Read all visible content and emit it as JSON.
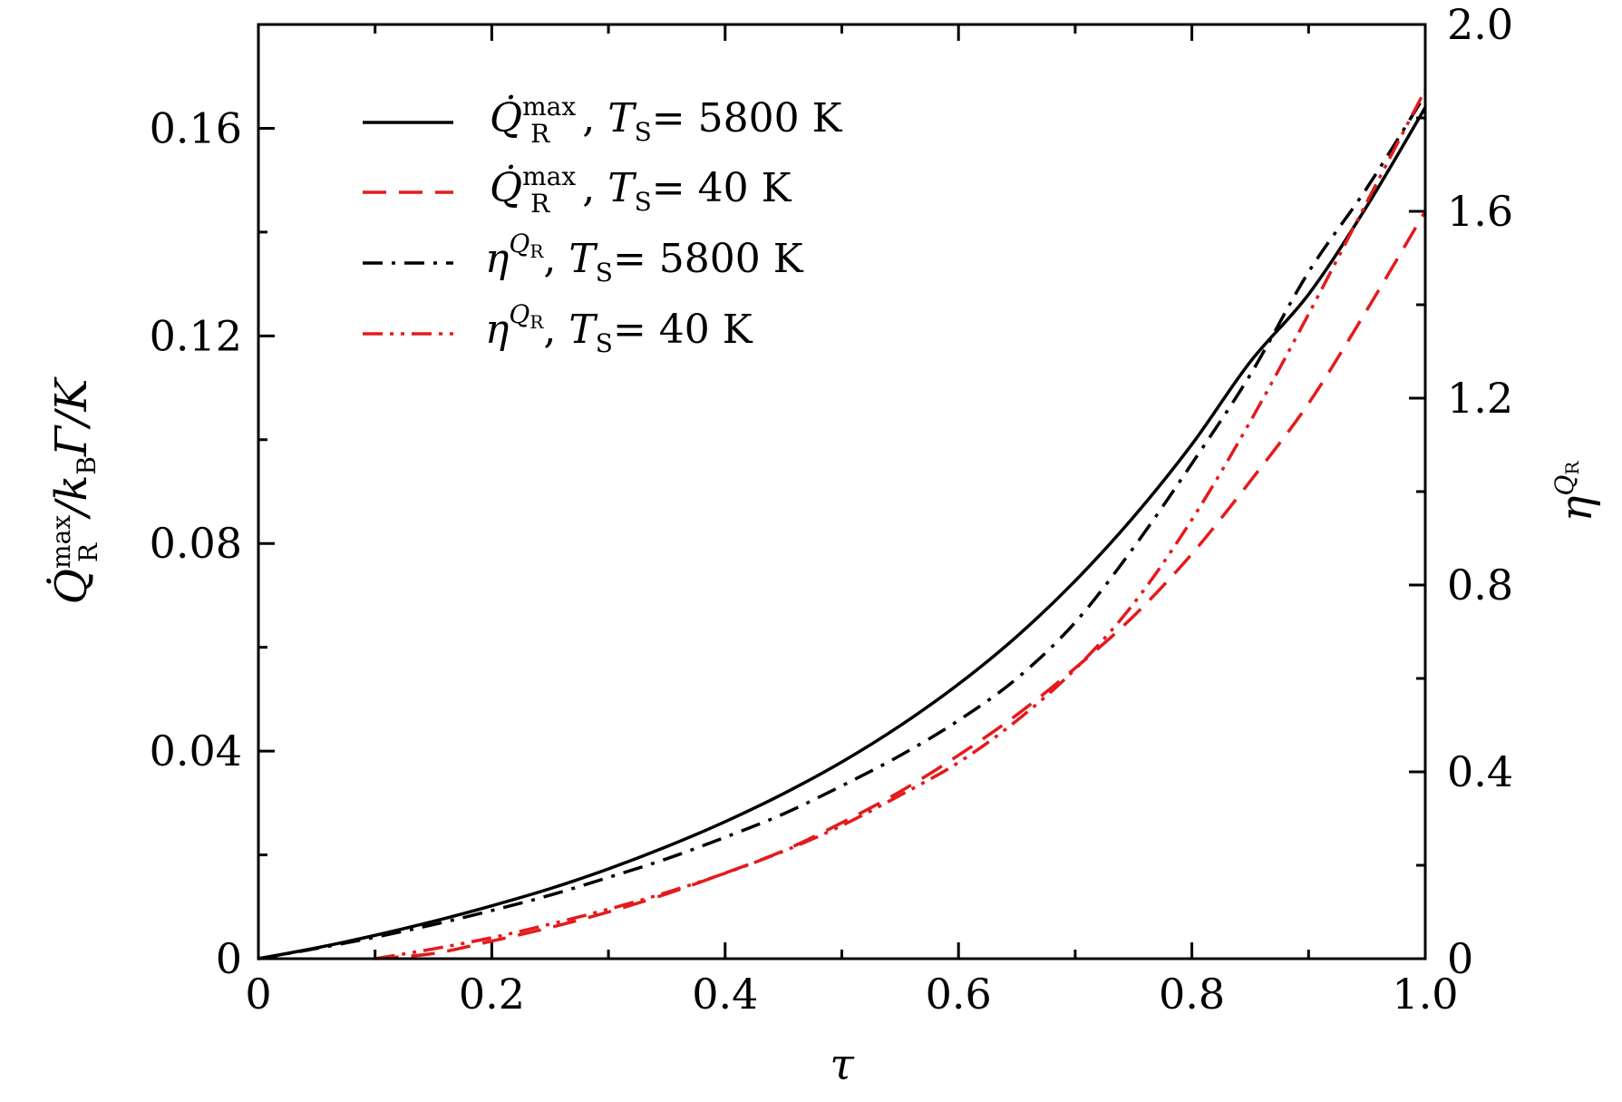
{
  "chart_data": {
    "type": "line",
    "x": [
      0,
      0.05,
      0.1,
      0.15,
      0.2,
      0.25,
      0.3,
      0.35,
      0.4,
      0.45,
      0.5,
      0.55,
      0.6,
      0.65,
      0.7,
      0.75,
      0.8,
      0.85,
      0.9,
      0.95,
      1.0
    ],
    "xlabel": "τ",
    "xlim": [
      0,
      1.0
    ],
    "xticks": [
      0,
      0.2,
      0.4,
      0.6,
      0.8,
      1.0
    ],
    "xtick_labels": [
      "0",
      "0.2",
      "0.4",
      "0.6",
      "0.8",
      "1.0"
    ],
    "y_left": {
      "label_main": "Q̇",
      "label_sub": "R",
      "label_sup": "max",
      "label_rest": "/k",
      "label_sub2": "B",
      "label_rest2": "Γ/K",
      "lim": [
        0,
        0.18
      ],
      "ticks": [
        0,
        0.04,
        0.08,
        0.12,
        0.16
      ],
      "tick_labels": [
        "0",
        "0.04",
        "0.08",
        "0.12",
        "0.16"
      ]
    },
    "y_right": {
      "label_main": "η",
      "label_sup": "Q",
      "label_sup_sub": "R",
      "lim": [
        0,
        2.0
      ],
      "ticks": [
        0,
        0.4,
        0.8,
        1.2,
        1.6,
        2.0
      ],
      "tick_labels": [
        "0",
        "0.4",
        "0.8",
        "1.2",
        "1.6",
        "2.0"
      ]
    },
    "series": [
      {
        "name": "Q_R^max, T_S = 5800 K",
        "axis": "left",
        "color": "#000000",
        "dash": "solid",
        "values": [
          0,
          0.0021,
          0.0045,
          0.0072,
          0.0102,
          0.0135,
          0.0173,
          0.0216,
          0.0264,
          0.0318,
          0.0379,
          0.0449,
          0.0529,
          0.0621,
          0.0728,
          0.0851,
          0.0991,
          0.115,
          0.128,
          0.145,
          0.164
        ]
      },
      {
        "name": "Q_R^max, T_S = 40 K",
        "axis": "left",
        "color": "#e41a1c",
        "dash": "dash",
        "values": [
          null,
          null,
          0,
          0.001,
          0.0034,
          0.006,
          0.009,
          0.0125,
          0.0165,
          0.0208,
          0.0262,
          0.0322,
          0.0392,
          0.047,
          0.056,
          0.066,
          0.078,
          0.092,
          0.107,
          0.125,
          0.144
        ]
      },
      {
        "name": "η^QR, T_S = 5800 K",
        "axis": "right",
        "color": "#000000",
        "dash": "dashdot",
        "values": [
          0,
          0.022,
          0.046,
          0.073,
          0.103,
          0.136,
          0.174,
          0.214,
          0.26,
          0.31,
          0.37,
          0.435,
          0.51,
          0.6,
          0.72,
          0.88,
          1.06,
          1.25,
          1.47,
          1.65,
          1.85
        ]
      },
      {
        "name": "η^QR, T_S = 40 K",
        "axis": "right",
        "color": "#e41a1c",
        "dash": "dashdotdot",
        "values": [
          null,
          null,
          0,
          0.021,
          0.045,
          0.074,
          0.106,
          0.142,
          0.183,
          0.23,
          0.285,
          0.35,
          0.42,
          0.51,
          0.62,
          0.76,
          0.94,
          1.15,
          1.38,
          1.62,
          1.86
        ]
      }
    ],
    "legend": {
      "position": "top-left",
      "entries": [
        {
          "main": "Q̇",
          "sub": "R",
          "sup": "max",
          "cond": "T",
          "cond_sub": "S",
          "value": "= 5800 K"
        },
        {
          "main": "Q̇",
          "sub": "R",
          "sup": "max",
          "cond": "T",
          "cond_sub": "S",
          "value": "= 40 K"
        },
        {
          "main": "η",
          "sup": "Q",
          "sup_sub": "R",
          "cond": "T",
          "cond_sub": "S",
          "value": "= 5800 K"
        },
        {
          "main": "η",
          "sup": "Q",
          "sup_sub": "R",
          "cond": "T",
          "cond_sub": "S",
          "value": "= 40 K"
        }
      ]
    }
  }
}
